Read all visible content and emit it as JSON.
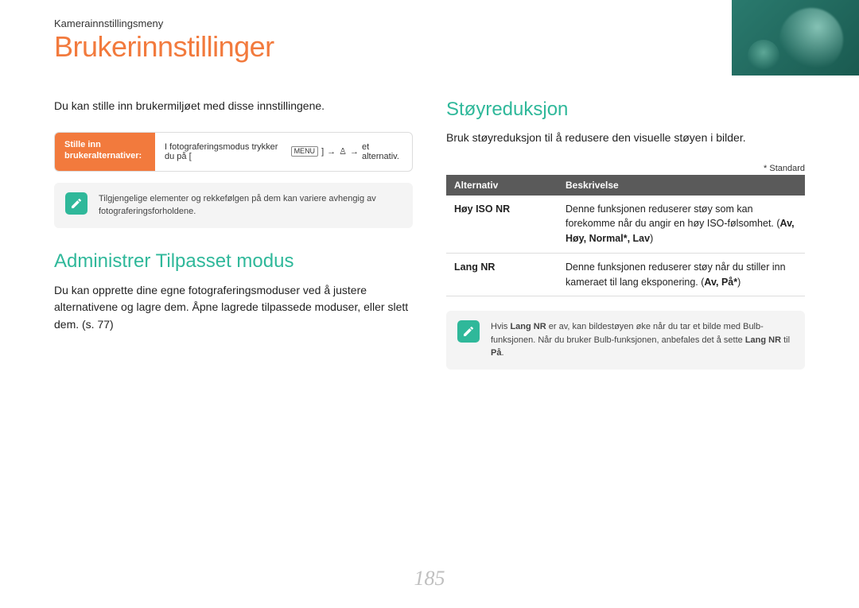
{
  "breadcrumb": "Kamerainnstillingsmeny",
  "title": "Brukerinnstillinger",
  "page_number": "185",
  "colors": {
    "accent_orange": "#f27a3d",
    "accent_teal": "#2fb89a",
    "header_band": "#1a5a50",
    "table_header": "#5a5a5a",
    "info_bg": "#f4f4f4"
  },
  "left": {
    "intro": "Du kan stille inn brukermiljøet med disse innstillingene.",
    "action": {
      "label": "Stille inn brukeralternativer:",
      "body_prefix": "I fotograferingsmodus trykker du på [",
      "menu": "MENU",
      "arrow1": "→",
      "person": "♙",
      "arrow2": "→",
      "suffix": "et alternativ."
    },
    "info": "Tilgjengelige elementer og rekkefølgen på dem kan variere avhengig av fotograferingsforholdene.",
    "section1": {
      "title": "Administrer Tilpasset modus",
      "body": "Du kan opprette dine egne fotograferingsmoduser ved å justere alternativene og lagre dem. Åpne lagrede tilpassede moduser, eller slett dem. (s. 77)"
    }
  },
  "right": {
    "section": {
      "title": "Støyreduksjon",
      "intro": "Bruk støyreduksjon til å redusere den visuelle støyen i bilder.",
      "standard_note": "* Standard",
      "table": {
        "headers": [
          "Alternativ",
          "Beskrivelse"
        ],
        "rows": [
          {
            "opt": "Høy ISO NR",
            "desc_pre": "Denne funksjonen reduserer støy som kan forekomme når du angir en høy ISO-følsomhet. (",
            "bold": "Av, Høy, Normal*, Lav",
            "desc_post": ")"
          },
          {
            "opt": "Lang NR",
            "desc_pre": "Denne funksjonen reduserer støy når du stiller inn kameraet til lang eksponering. (",
            "bold": "Av, På*",
            "desc_post": ")"
          }
        ]
      },
      "info_pre": "Hvis ",
      "info_b1": "Lang NR",
      "info_mid": " er av, kan bildestøyen øke når du tar et bilde med Bulb-funksjonen. Når du bruker Bulb-funksjonen, anbefales det å sette ",
      "info_b2": "Lang NR",
      "info_mid2": " til ",
      "info_b3": "På",
      "info_end": "."
    }
  }
}
